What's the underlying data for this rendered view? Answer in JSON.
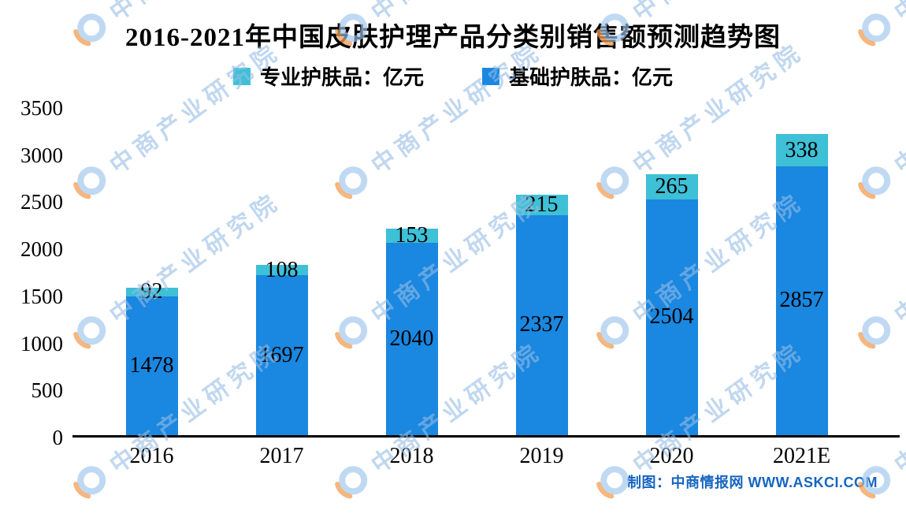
{
  "chart_data": {
    "type": "bar",
    "stacked": true,
    "title": "2016-2021年中国皮肤护理产品分类别销售额预测趋势图",
    "categories": [
      "2016",
      "2017",
      "2018",
      "2019",
      "2020",
      "2021E"
    ],
    "series": [
      {
        "name": "基础护肤品：亿元",
        "color": "#1a87e0",
        "values": [
          1478,
          1697,
          2040,
          2337,
          2504,
          2857
        ]
      },
      {
        "name": "专业护肤品：亿元",
        "color": "#3ec0d6",
        "values": [
          92,
          108,
          153,
          215,
          265,
          338
        ]
      }
    ],
    "xlabel": "",
    "ylabel": "",
    "ylim": [
      0,
      3500
    ],
    "yticks": [
      0,
      500,
      1000,
      1500,
      2000,
      2500,
      3000,
      3500
    ],
    "grid": false,
    "legend_position": "top"
  },
  "legend": [
    {
      "label": "专业护肤品：亿元",
      "color": "#3ec0d6"
    },
    {
      "label": "基础护肤品：亿元",
      "color": "#1a87e0"
    }
  ],
  "watermark": {
    "text": "中商产业研究院"
  },
  "credit": "制图：中商情报网 WWW.ASKCI.COM"
}
